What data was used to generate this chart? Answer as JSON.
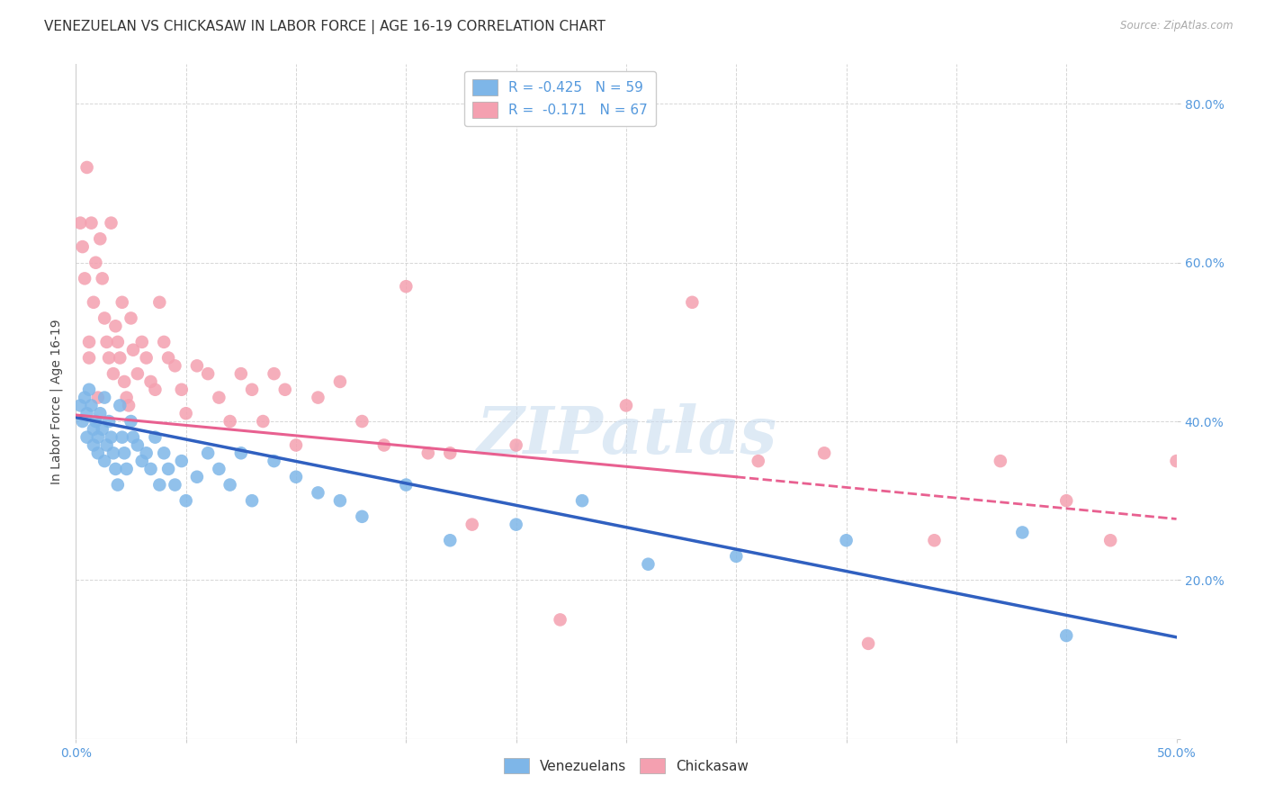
{
  "title": "VENEZUELAN VS CHICKASAW IN LABOR FORCE | AGE 16-19 CORRELATION CHART",
  "source": "Source: ZipAtlas.com",
  "ylabel": "In Labor Force | Age 16-19",
  "xlim": [
    0.0,
    0.5
  ],
  "ylim": [
    0.0,
    0.85
  ],
  "x_ticks": [
    0.0,
    0.05,
    0.1,
    0.15,
    0.2,
    0.25,
    0.3,
    0.35,
    0.4,
    0.45,
    0.5
  ],
  "x_tick_labels": [
    "0.0%",
    "",
    "",
    "",
    "",
    "",
    "",
    "",
    "",
    "",
    "50.0%"
  ],
  "y_ticks": [
    0.0,
    0.2,
    0.4,
    0.6,
    0.8
  ],
  "y_tick_labels": [
    "",
    "20.0%",
    "40.0%",
    "60.0%",
    "80.0%"
  ],
  "venezuelan_color": "#7EB6E8",
  "chickasaw_color": "#F4A0B0",
  "trend_venezuelan_color": "#3060C0",
  "trend_chickasaw_color": "#E86090",
  "R_venezuelan": -0.425,
  "N_venezuelan": 59,
  "R_chickasaw": -0.171,
  "N_chickasaw": 67,
  "watermark": "ZIPatlas",
  "venezuelan_x": [
    0.002,
    0.003,
    0.004,
    0.005,
    0.005,
    0.006,
    0.007,
    0.008,
    0.008,
    0.009,
    0.01,
    0.01,
    0.011,
    0.012,
    0.013,
    0.013,
    0.014,
    0.015,
    0.016,
    0.017,
    0.018,
    0.019,
    0.02,
    0.021,
    0.022,
    0.023,
    0.025,
    0.026,
    0.028,
    0.03,
    0.032,
    0.034,
    0.036,
    0.038,
    0.04,
    0.042,
    0.045,
    0.048,
    0.05,
    0.055,
    0.06,
    0.065,
    0.07,
    0.075,
    0.08,
    0.09,
    0.1,
    0.11,
    0.12,
    0.13,
    0.15,
    0.17,
    0.2,
    0.23,
    0.26,
    0.3,
    0.35,
    0.43,
    0.45
  ],
  "venezuelan_y": [
    0.42,
    0.4,
    0.43,
    0.41,
    0.38,
    0.44,
    0.42,
    0.39,
    0.37,
    0.4,
    0.36,
    0.38,
    0.41,
    0.39,
    0.35,
    0.43,
    0.37,
    0.4,
    0.38,
    0.36,
    0.34,
    0.32,
    0.42,
    0.38,
    0.36,
    0.34,
    0.4,
    0.38,
    0.37,
    0.35,
    0.36,
    0.34,
    0.38,
    0.32,
    0.36,
    0.34,
    0.32,
    0.35,
    0.3,
    0.33,
    0.36,
    0.34,
    0.32,
    0.36,
    0.3,
    0.35,
    0.33,
    0.31,
    0.3,
    0.28,
    0.32,
    0.25,
    0.27,
    0.3,
    0.22,
    0.23,
    0.25,
    0.26,
    0.13
  ],
  "chickasaw_x": [
    0.002,
    0.003,
    0.004,
    0.005,
    0.006,
    0.006,
    0.007,
    0.008,
    0.009,
    0.01,
    0.011,
    0.012,
    0.013,
    0.014,
    0.015,
    0.016,
    0.017,
    0.018,
    0.019,
    0.02,
    0.021,
    0.022,
    0.023,
    0.024,
    0.025,
    0.026,
    0.028,
    0.03,
    0.032,
    0.034,
    0.036,
    0.038,
    0.04,
    0.042,
    0.045,
    0.048,
    0.05,
    0.055,
    0.06,
    0.065,
    0.07,
    0.075,
    0.08,
    0.085,
    0.09,
    0.095,
    0.1,
    0.11,
    0.12,
    0.13,
    0.14,
    0.15,
    0.16,
    0.17,
    0.18,
    0.2,
    0.22,
    0.25,
    0.28,
    0.31,
    0.34,
    0.36,
    0.39,
    0.42,
    0.45,
    0.47,
    0.5
  ],
  "chickasaw_y": [
    0.65,
    0.62,
    0.58,
    0.72,
    0.5,
    0.48,
    0.65,
    0.55,
    0.6,
    0.43,
    0.63,
    0.58,
    0.53,
    0.5,
    0.48,
    0.65,
    0.46,
    0.52,
    0.5,
    0.48,
    0.55,
    0.45,
    0.43,
    0.42,
    0.53,
    0.49,
    0.46,
    0.5,
    0.48,
    0.45,
    0.44,
    0.55,
    0.5,
    0.48,
    0.47,
    0.44,
    0.41,
    0.47,
    0.46,
    0.43,
    0.4,
    0.46,
    0.44,
    0.4,
    0.46,
    0.44,
    0.37,
    0.43,
    0.45,
    0.4,
    0.37,
    0.57,
    0.36,
    0.36,
    0.27,
    0.37,
    0.15,
    0.42,
    0.55,
    0.35,
    0.36,
    0.12,
    0.25,
    0.35,
    0.3,
    0.25,
    0.35
  ],
  "background_color": "#FFFFFF",
  "grid_color": "#CCCCCC",
  "title_fontsize": 11,
  "axis_label_fontsize": 10,
  "tick_fontsize": 10,
  "legend_fontsize": 11,
  "watermark_fontsize": 52,
  "trend_ven_x0": 0.0,
  "trend_ven_y0": 0.405,
  "trend_ven_x1": 0.5,
  "trend_ven_y1": 0.128,
  "trend_chk_x0": 0.0,
  "trend_chk_y0": 0.408,
  "trend_chk_x1": 0.3,
  "trend_chk_y1": 0.33,
  "trend_chk_dash_x0": 0.3,
  "trend_chk_dash_y0": 0.33,
  "trend_chk_dash_x1": 0.5,
  "trend_chk_dash_y1": 0.277
}
